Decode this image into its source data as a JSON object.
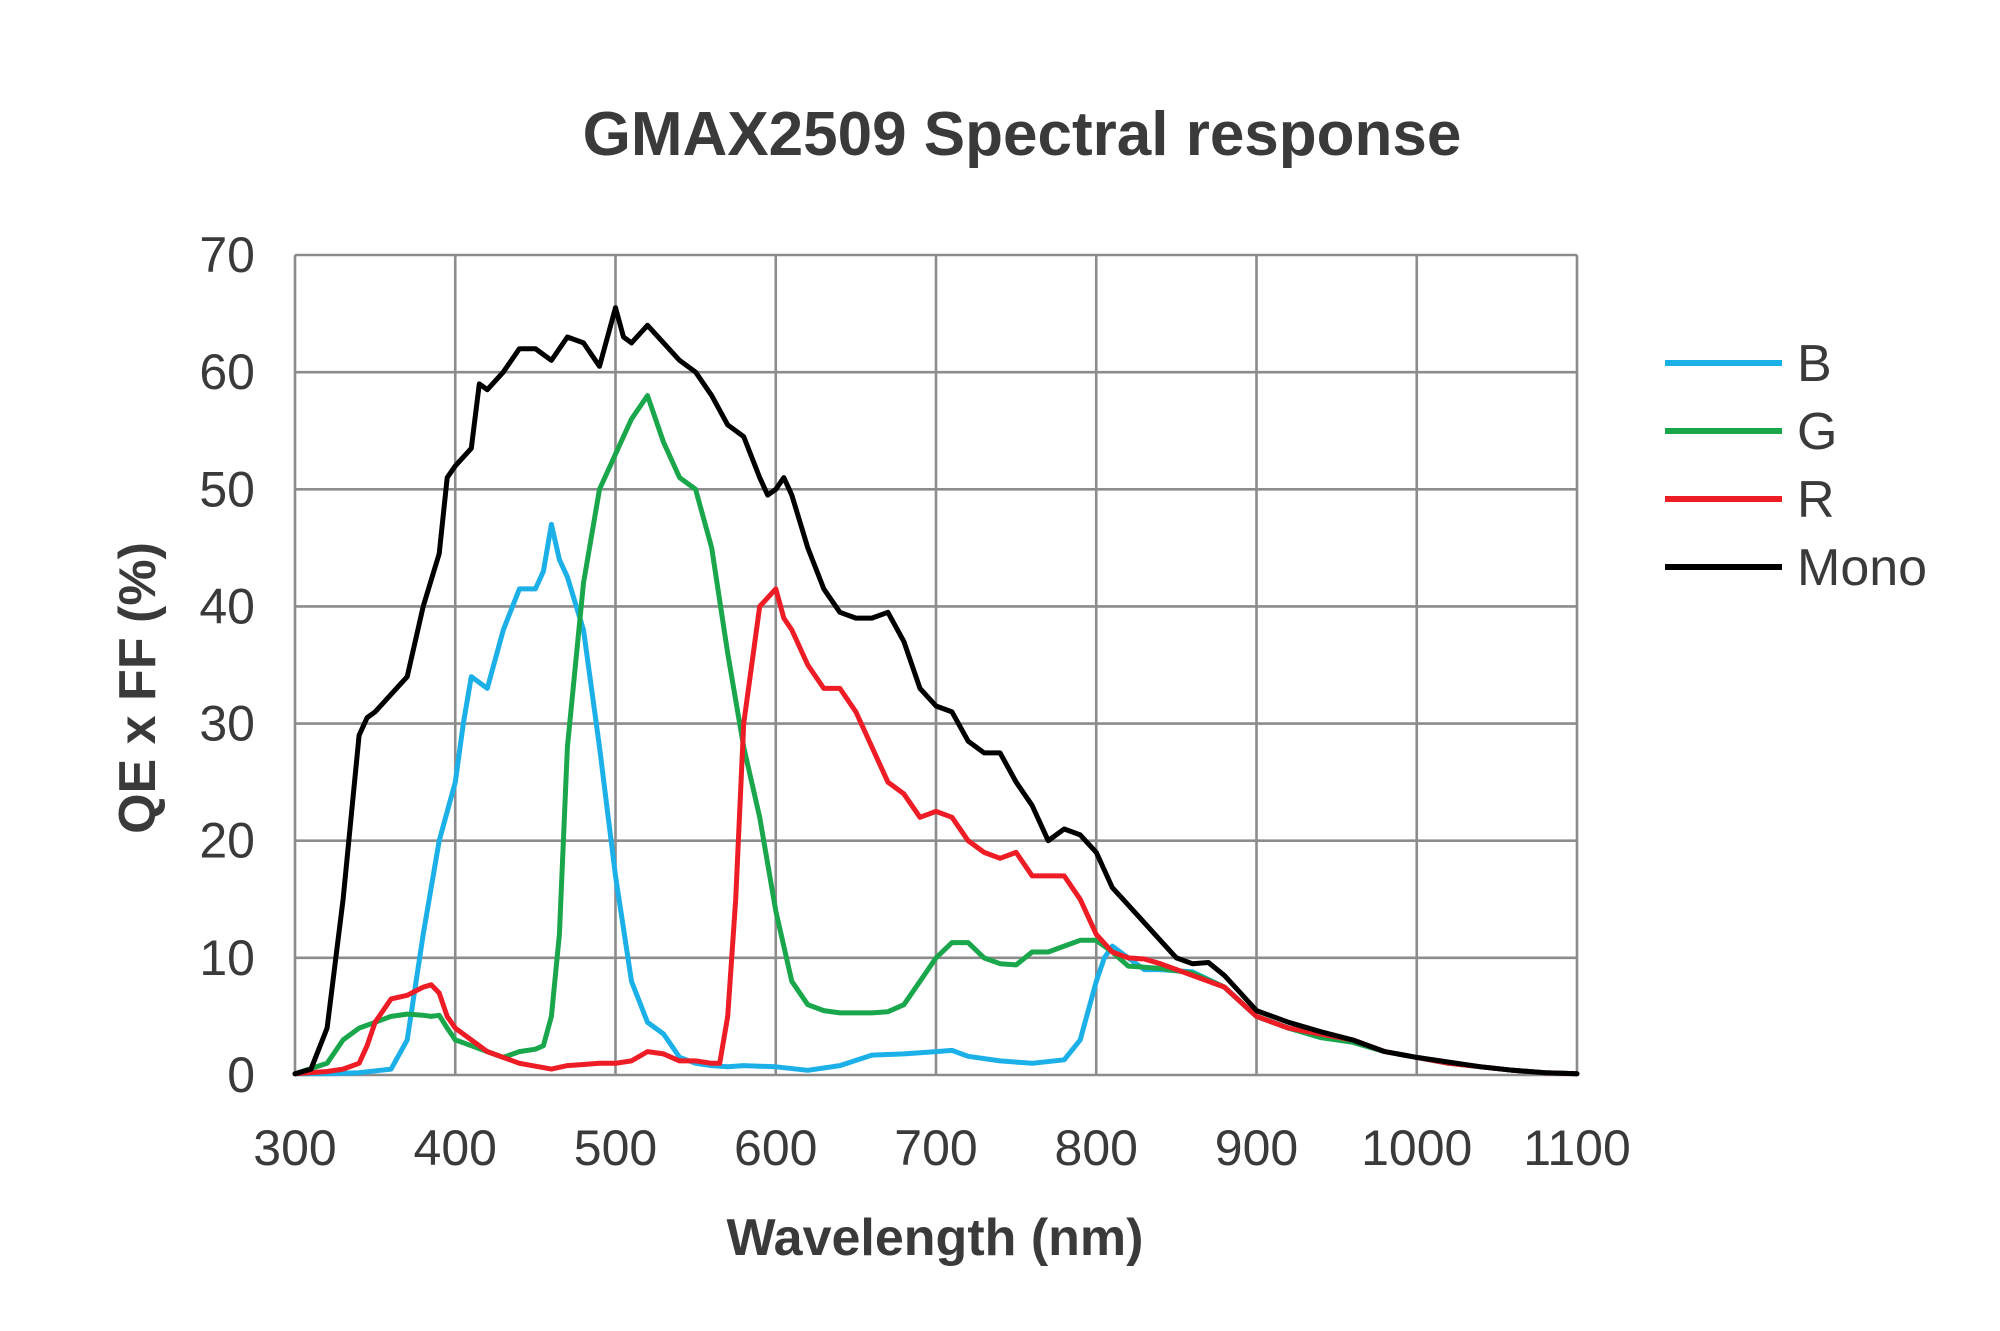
{
  "chart_data": {
    "type": "line",
    "title": "GMAX2509 Spectral response",
    "xlabel": "Wavelength (nm)",
    "ylabel": "QE x FF (%)",
    "xlim": [
      300,
      1100
    ],
    "ylim": [
      0,
      70
    ],
    "xticks": [
      "300",
      "400",
      "500",
      "600",
      "700",
      "800",
      "900",
      "1000",
      "1100"
    ],
    "yticks": [
      "0",
      "10",
      "20",
      "30",
      "40",
      "50",
      "60",
      "70"
    ],
    "grid": true,
    "legend_position": "right",
    "series": [
      {
        "name": "B",
        "color": "#1cb0e8",
        "x": [
          300,
          320,
          340,
          360,
          370,
          380,
          390,
          400,
          405,
          410,
          420,
          430,
          440,
          450,
          455,
          460,
          465,
          470,
          480,
          490,
          500,
          510,
          520,
          530,
          540,
          550,
          560,
          570,
          580,
          600,
          620,
          640,
          660,
          680,
          700,
          710,
          720,
          740,
          760,
          780,
          790,
          800,
          805,
          810,
          820,
          830,
          840,
          860,
          880,
          900,
          920,
          940,
          960,
          980,
          1000,
          1020,
          1040,
          1060,
          1080,
          1100
        ],
        "y": [
          0.1,
          0.1,
          0.2,
          0.5,
          3,
          12,
          20,
          25,
          30,
          34,
          33,
          38,
          41.5,
          41.5,
          43,
          47,
          44,
          42.5,
          38,
          28,
          17,
          8,
          4.5,
          3.5,
          1.5,
          1,
          0.8,
          0.7,
          0.8,
          0.7,
          0.4,
          0.8,
          1.7,
          1.8,
          2,
          2.1,
          1.6,
          1.2,
          1,
          1.3,
          3,
          8,
          10,
          11,
          10,
          9,
          9,
          8.8,
          7.5,
          5,
          4,
          3.2,
          2.8,
          2,
          1.5,
          1,
          0.7,
          0.4,
          0.2,
          0.1
        ]
      },
      {
        "name": "G",
        "color": "#1aa64b",
        "x": [
          300,
          320,
          330,
          340,
          350,
          360,
          370,
          380,
          385,
          390,
          395,
          400,
          410,
          420,
          430,
          440,
          450,
          455,
          460,
          465,
          470,
          480,
          490,
          500,
          510,
          520,
          530,
          540,
          550,
          560,
          570,
          580,
          590,
          600,
          610,
          620,
          630,
          640,
          660,
          670,
          680,
          690,
          700,
          710,
          720,
          730,
          740,
          750,
          760,
          770,
          780,
          790,
          800,
          810,
          820,
          830,
          840,
          860,
          880,
          900,
          920,
          940,
          960,
          980,
          1000,
          1020,
          1040,
          1060,
          1080,
          1100
        ],
        "y": [
          0.1,
          1,
          3,
          4,
          4.5,
          5,
          5.2,
          5.1,
          5,
          5.1,
          4,
          3,
          2.5,
          2,
          1.5,
          2,
          2.2,
          2.5,
          5,
          12,
          28,
          42,
          50,
          53,
          56,
          58,
          54,
          51,
          50,
          45,
          36,
          28,
          22,
          14,
          8,
          6,
          5.5,
          5.3,
          5.3,
          5.4,
          6,
          8,
          10,
          11.3,
          11.3,
          10,
          9.5,
          9.4,
          10.5,
          10.5,
          11,
          11.5,
          11.5,
          10.5,
          9.3,
          9.2,
          9.1,
          8.7,
          7.5,
          5,
          4,
          3.2,
          2.8,
          2,
          1.5,
          1,
          0.7,
          0.4,
          0.2,
          0.1
        ]
      },
      {
        "name": "R",
        "color": "#ee1c25",
        "x": [
          300,
          320,
          330,
          340,
          345,
          350,
          360,
          370,
          380,
          385,
          390,
          395,
          400,
          410,
          420,
          440,
          460,
          470,
          480,
          490,
          500,
          510,
          520,
          530,
          540,
          550,
          560,
          565,
          570,
          575,
          580,
          590,
          600,
          605,
          610,
          620,
          630,
          640,
          650,
          660,
          670,
          680,
          690,
          700,
          710,
          720,
          730,
          740,
          750,
          760,
          770,
          780,
          790,
          800,
          810,
          820,
          830,
          840,
          860,
          880,
          900,
          920,
          940,
          960,
          980,
          1000,
          1020,
          1040,
          1060,
          1080,
          1100
        ],
        "y": [
          0.1,
          0.3,
          0.5,
          1,
          2.5,
          4.5,
          6.5,
          6.8,
          7.5,
          7.7,
          7,
          5,
          4,
          3,
          2,
          1,
          0.5,
          0.8,
          0.9,
          1,
          1,
          1.2,
          2,
          1.8,
          1.2,
          1.2,
          1,
          1,
          5,
          15,
          30,
          40,
          41.5,
          39,
          38,
          35,
          33,
          33,
          31,
          28,
          25,
          24,
          22,
          22.5,
          22,
          20,
          19,
          18.5,
          19,
          17,
          17,
          17,
          15,
          12,
          10.5,
          10,
          9.9,
          9.5,
          8.5,
          7.5,
          5,
          4,
          3.5,
          3,
          2,
          1.5,
          1,
          0.7,
          0.4,
          0.2,
          0.1
        ]
      },
      {
        "name": "Mono",
        "color": "#000000",
        "x": [
          300,
          310,
          320,
          330,
          335,
          340,
          345,
          350,
          360,
          370,
          380,
          390,
          395,
          400,
          410,
          415,
          420,
          430,
          440,
          450,
          460,
          470,
          480,
          490,
          495,
          500,
          505,
          510,
          520,
          530,
          540,
          550,
          560,
          570,
          580,
          590,
          595,
          600,
          605,
          610,
          620,
          630,
          640,
          650,
          660,
          670,
          680,
          690,
          700,
          710,
          720,
          730,
          740,
          750,
          760,
          770,
          780,
          790,
          800,
          810,
          820,
          830,
          840,
          850,
          860,
          870,
          880,
          890,
          900,
          920,
          940,
          960,
          980,
          1000,
          1020,
          1040,
          1060,
          1080,
          1100
        ],
        "y": [
          0.1,
          0.5,
          4,
          15,
          22,
          29,
          30.5,
          31,
          32.5,
          34,
          40,
          44.5,
          51,
          52,
          53.5,
          59,
          58.5,
          60,
          62,
          62,
          61,
          63,
          62.5,
          60.5,
          63,
          65.5,
          63,
          62.5,
          64,
          62.5,
          61,
          60,
          58,
          55.5,
          54.5,
          51,
          49.5,
          50,
          51,
          49.5,
          45,
          41.5,
          39.5,
          39,
          39,
          39.5,
          37,
          33,
          31.5,
          31,
          28.5,
          27.5,
          27.5,
          25,
          23,
          20,
          21,
          20.5,
          19,
          16,
          14.5,
          13,
          11.5,
          10,
          9.5,
          9.6,
          8.5,
          7,
          5.5,
          4.5,
          3.7,
          3,
          2,
          1.5,
          1.1,
          0.7,
          0.4,
          0.2,
          0.1
        ]
      }
    ]
  }
}
